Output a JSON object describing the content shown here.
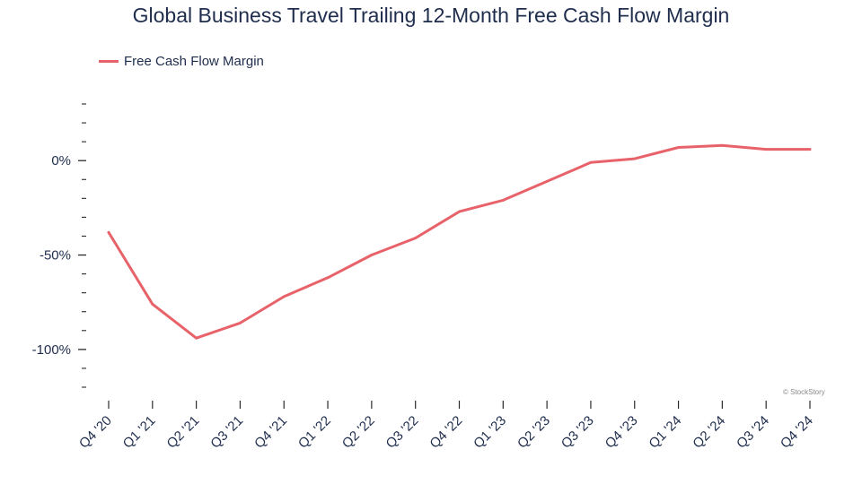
{
  "chart_data": {
    "type": "line",
    "title": "Global Business Travel Trailing 12-Month Free Cash Flow Margin",
    "xlabel": "",
    "ylabel": "",
    "categories": [
      "Q4 '20",
      "Q1 '21",
      "Q2 '21",
      "Q3 '21",
      "Q4 '21",
      "Q1 '22",
      "Q2 '22",
      "Q3 '22",
      "Q4 '22",
      "Q1 '23",
      "Q2 '23",
      "Q3 '23",
      "Q4 '23",
      "Q1 '24",
      "Q2 '24",
      "Q3 '24",
      "Q4 '24"
    ],
    "series": [
      {
        "name": "Free Cash Flow Margin",
        "color": "#e8626a",
        "values": [
          -38,
          -76,
          -94,
          -86,
          -72,
          -62,
          -50,
          -41,
          -27,
          -21,
          -11,
          -1,
          1,
          7,
          8,
          6,
          6
        ]
      }
    ],
    "yticks": [
      0,
      -50,
      -100
    ],
    "ytick_labels": [
      "0%",
      "-50%",
      "-100%"
    ],
    "ylim": [
      -120,
      30
    ],
    "grid": false,
    "legend_position": "top-left"
  },
  "watermark": "© StockStory"
}
